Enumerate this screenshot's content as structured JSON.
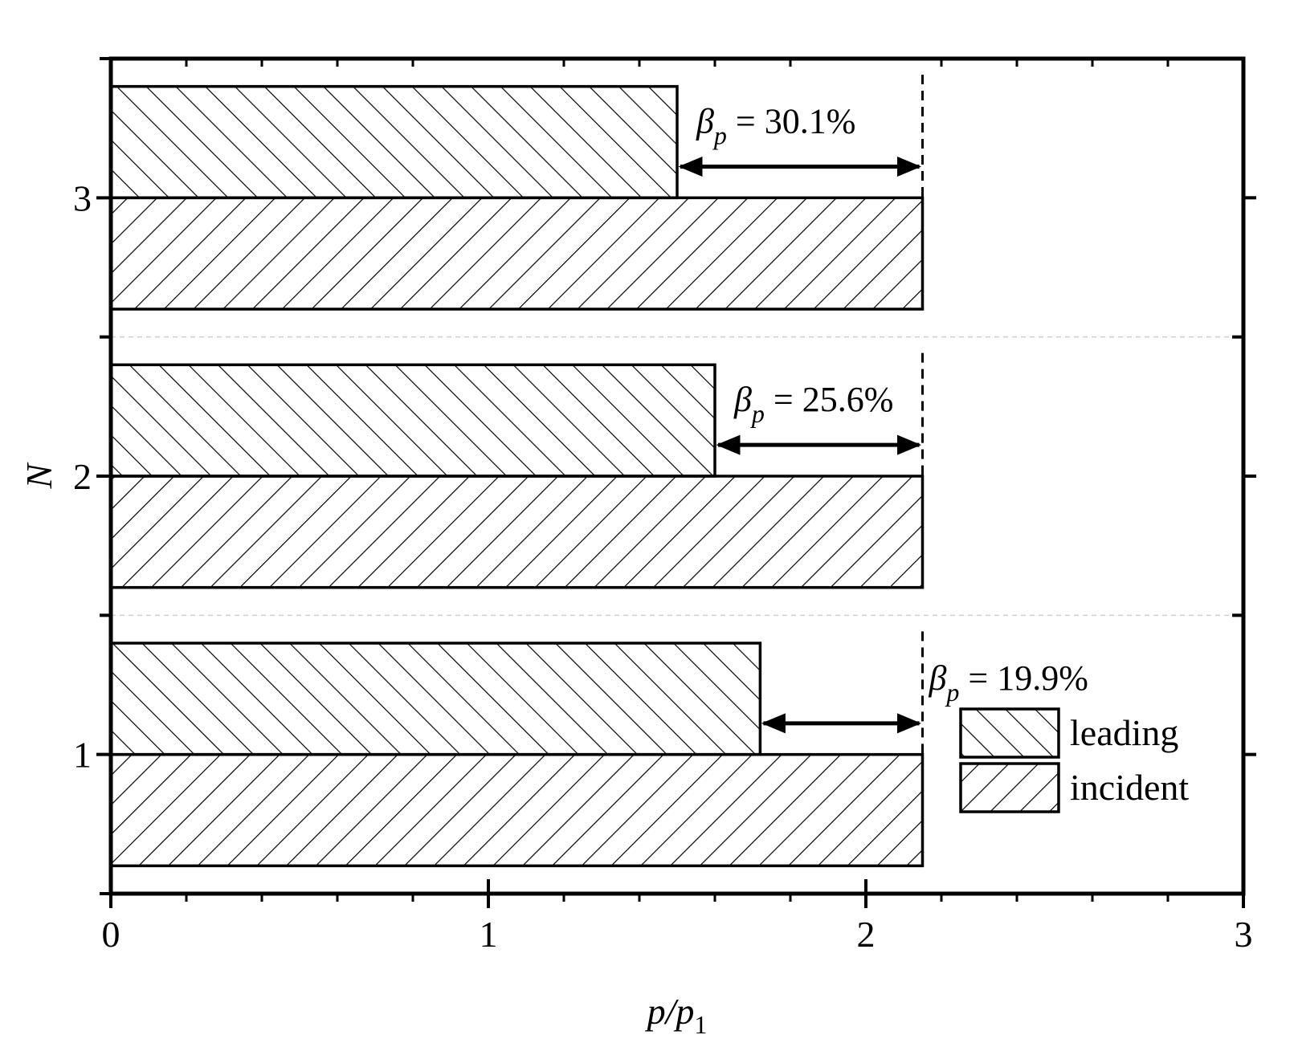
{
  "chart_data": {
    "type": "bar",
    "orientation": "horizontal",
    "title": "",
    "xlabel": "p/p1",
    "ylabel": "N",
    "xlim": [
      0,
      3
    ],
    "x_ticks": [
      "0",
      "1",
      "2",
      "3"
    ],
    "categories": [
      "1",
      "2",
      "3"
    ],
    "series": [
      {
        "name": "leading",
        "values": [
          1.72,
          1.6,
          1.5
        ],
        "pattern": "backslash-hatch"
      },
      {
        "name": "incident",
        "values": [
          2.15,
          2.15,
          2.15
        ],
        "pattern": "slash-hatch"
      }
    ],
    "annotations": [
      {
        "category": "1",
        "prefix": "β",
        "subscript": "p",
        "text": " = 19.9%"
      },
      {
        "category": "2",
        "prefix": "β",
        "subscript": "p",
        "text": " = 25.6%"
      },
      {
        "category": "3",
        "prefix": "β",
        "subscript": "p",
        "text": " = 30.1%"
      }
    ],
    "legend": {
      "placement": "bottom-right",
      "entries": [
        "leading",
        "incident"
      ]
    },
    "grid": false
  }
}
